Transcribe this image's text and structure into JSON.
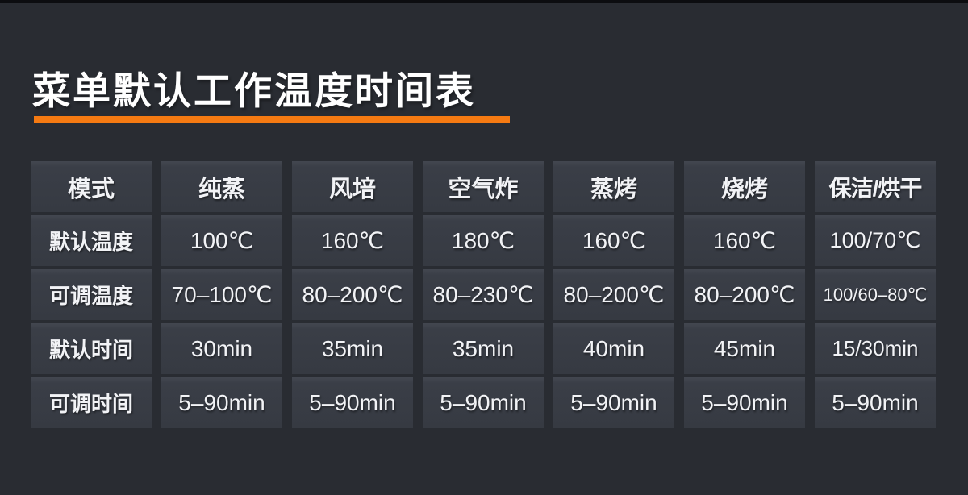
{
  "page": {
    "title": "菜单默认工作温度时间表",
    "accent_color": "#f57a12",
    "background_color": "#292c32",
    "cell_color": "#3a3e47",
    "text_color": "#f2f3f6"
  },
  "chart_data": {
    "type": "table",
    "title": "菜单默认工作温度时间表",
    "columns": [
      "模式",
      "纯蒸",
      "风培",
      "空气炸",
      "蒸烤",
      "烧烤",
      "保洁/烘干"
    ],
    "rows": [
      {
        "label": "默认温度",
        "values": [
          "100℃",
          "160℃",
          "180℃",
          "160℃",
          "160℃",
          "100/70℃"
        ]
      },
      {
        "label": "可调温度",
        "values": [
          "70–100℃",
          "80–200℃",
          "80–230℃",
          "80–200℃",
          "80–200℃",
          "100/60–80℃"
        ]
      },
      {
        "label": "默认时间",
        "values": [
          "30min",
          "35min",
          "35min",
          "40min",
          "45min",
          "15/30min"
        ]
      },
      {
        "label": "可调时间",
        "values": [
          "5–90min",
          "5–90min",
          "5–90min",
          "5–90min",
          "5–90min",
          "5–90min"
        ]
      }
    ],
    "layout": {
      "legend": "none",
      "grid": "cell-blocks-on-dark-background",
      "header_position": "top-row",
      "row_label_position": "left-column"
    }
  }
}
